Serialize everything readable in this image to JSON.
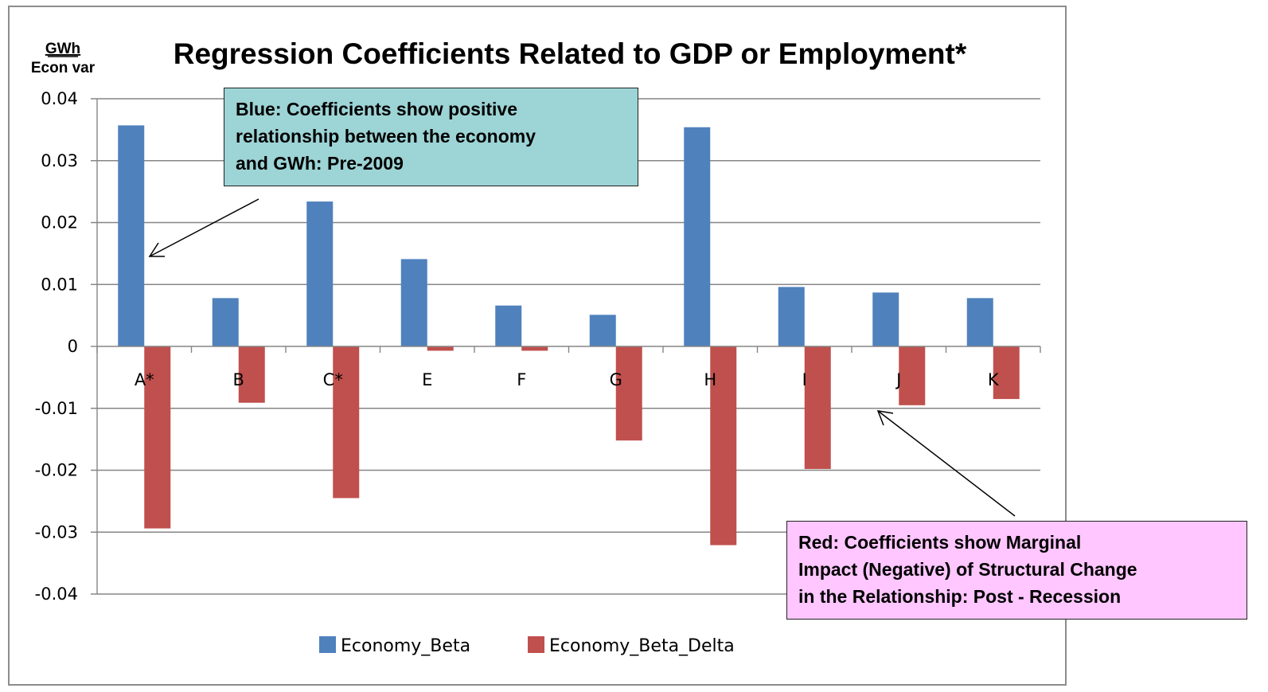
{
  "chart_data": {
    "type": "bar",
    "title": "Regression Coefficients Related to GDP or Employment*",
    "ylabel_numerator": "GWh",
    "ylabel_denominator": "Econ var",
    "xlabel": "",
    "ylim": [
      -0.04,
      0.04
    ],
    "yticks": [
      "0.04",
      "0.03",
      "0.02",
      "0.01",
      "0",
      "-0.01",
      "-0.02",
      "-0.03",
      "-0.04"
    ],
    "ytick_values": [
      0.04,
      0.03,
      0.02,
      0.01,
      0,
      -0.01,
      -0.02,
      -0.03,
      -0.04
    ],
    "categories": [
      "A*",
      "B",
      "C*",
      "E",
      "F",
      "G",
      "H",
      "I",
      "J",
      "K"
    ],
    "series": [
      {
        "name": "Economy_Beta",
        "color": "#4f81bd",
        "values": [
          0.0357,
          0.0078,
          0.0234,
          0.0141,
          0.0066,
          0.0051,
          0.0354,
          0.0096,
          0.0087,
          0.0078
        ]
      },
      {
        "name": "Economy_Beta_Delta",
        "color": "#c0504d",
        "values": [
          -0.0294,
          -0.0091,
          -0.0245,
          -0.0007,
          -0.0007,
          -0.0152,
          -0.0321,
          -0.0198,
          -0.0095,
          -0.0085
        ]
      }
    ],
    "grid": true,
    "legend_position": "bottom",
    "annotations": [
      {
        "id": "blue",
        "lines": [
          "Blue:  Coefficients show positive",
          "relationship between the economy",
          "and GWh: Pre-2009"
        ],
        "color": "#9dd4d6"
      },
      {
        "id": "red",
        "lines": [
          "Red:  Coefficients show Marginal",
          "Impact (Negative) of Structural Change",
          "in the Relationship: Post - Recession"
        ],
        "color": "#ffc6ff"
      }
    ]
  }
}
